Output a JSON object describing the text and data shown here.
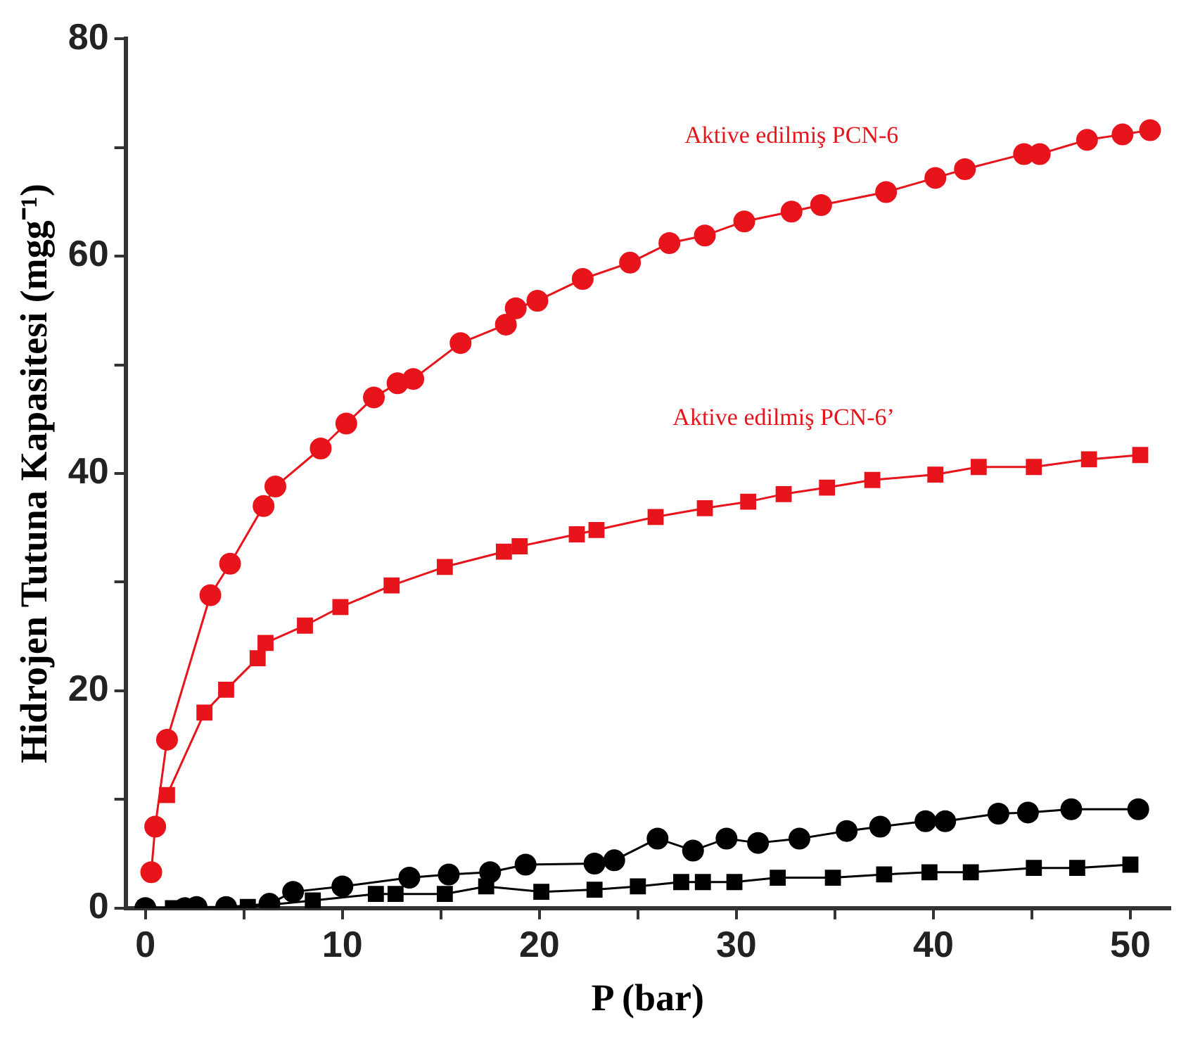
{
  "chart_data": {
    "type": "line",
    "xlabel": "P (bar)",
    "ylabel": "Hidrojen Tutuna Kapasitesi (mgg⁻¹)",
    "xlim": [
      -1,
      52
    ],
    "ylim": [
      0,
      80
    ],
    "xticks": [
      0,
      {
        "value": 5,
        "label": null
      },
      10,
      {
        "value": 15,
        "label": null
      },
      20,
      {
        "value": 25,
        "label": null
      },
      30,
      {
        "value": 35,
        "label": null
      },
      40,
      {
        "value": 45,
        "label": null
      },
      50
    ],
    "yticks": [
      0,
      {
        "value": 10,
        "label": null
      },
      20,
      {
        "value": 30,
        "label": null
      },
      40,
      {
        "value": 50,
        "label": null
      },
      60,
      {
        "value": 70,
        "label": null
      },
      80
    ],
    "grid": false,
    "legend": false,
    "series": [
      {
        "name": "Aktive edilmiş PCN-6",
        "color": "#e8141c",
        "marker": "circle",
        "x": [
          0.3,
          0.5,
          1.1,
          3.3,
          4.3,
          6.0,
          6.6,
          8.9,
          10.2,
          11.6,
          12.8,
          13.6,
          16,
          18.3,
          18.8,
          19.9,
          22.2,
          24.6,
          26.6,
          28.4,
          30.4,
          32.8,
          34.3,
          37.6,
          40.1,
          41.6,
          44.6,
          45.4,
          47.8,
          49.6,
          51.0
        ],
        "values": [
          3.3,
          7.5,
          15.5,
          28.8,
          31.7,
          37,
          38.8,
          42.3,
          44.6,
          47,
          48.3,
          48.7,
          52,
          53.7,
          55.2,
          55.9,
          57.9,
          59.4,
          61.2,
          61.9,
          63.2,
          64.1,
          64.7,
          65.9,
          67.2,
          68,
          69.4,
          69.4,
          70.7,
          71.2,
          71.6
        ]
      },
      {
        "name": "Aktive edilmiş PCN-6’",
        "color": "#e8141c",
        "marker": "square",
        "x": [
          1.1,
          3.0,
          4.1,
          5.7,
          6.1,
          8.1,
          9.9,
          12.5,
          15.2,
          18.2,
          19,
          21.9,
          22.9,
          25.9,
          28.4,
          30.6,
          32.4,
          34.6,
          36.9,
          40.1,
          42.3,
          45.1,
          47.9,
          50.5
        ],
        "values": [
          10.4,
          18,
          20.1,
          23,
          24.4,
          26,
          27.7,
          29.7,
          31.4,
          32.8,
          33.3,
          34.4,
          34.8,
          36,
          36.8,
          37.4,
          38.1,
          38.7,
          39.4,
          39.9,
          40.6,
          40.6,
          41.3,
          41.7
        ]
      },
      {
        "color": "#000000",
        "marker": "square",
        "x": [
          0,
          1.4,
          5.2,
          8.5,
          11.7,
          12.7,
          15.2,
          17.3,
          20.1,
          22.8,
          25,
          27.2,
          28.3,
          29.9,
          32.1,
          34.9,
          37.5,
          39.8,
          41.9,
          45.1,
          47.3,
          50
        ],
        "values": [
          0,
          0,
          0.1,
          0.7,
          1.3,
          1.3,
          1.3,
          2,
          1.5,
          1.7,
          2,
          2.4,
          2.4,
          2.4,
          2.8,
          2.8,
          3.1,
          3.3,
          3.3,
          3.7,
          3.7,
          4
        ]
      },
      {
        "color": "#000000",
        "marker": "circle",
        "x": [
          0,
          2.0,
          2.6,
          4.1,
          6.3,
          7.5,
          10,
          13.4,
          15.4,
          17.5,
          19.3,
          22.8,
          23.8,
          26,
          27.8,
          29.5,
          31.1,
          33.2,
          35.6,
          37.3,
          39.6,
          40.6,
          43.3,
          44.8,
          47,
          50.4
        ],
        "values": [
          0,
          0,
          0.1,
          0.1,
          0.4,
          1.5,
          2,
          2.8,
          3.1,
          3.3,
          4,
          4.1,
          4.4,
          6.4,
          5.3,
          6.4,
          6,
          6.4,
          7.1,
          7.5,
          8,
          8,
          8.7,
          8.8,
          9.1,
          9.1
        ]
      }
    ]
  }
}
